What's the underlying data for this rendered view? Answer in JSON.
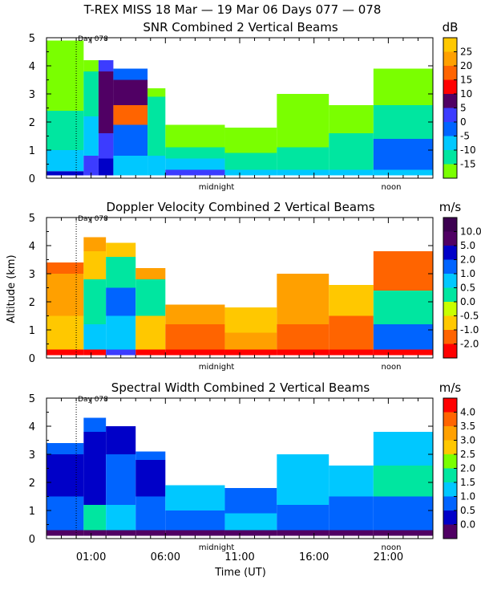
{
  "title": "T-REX MISS   18 Mar — 19 Mar 06 Days 077 — 078",
  "xlabel": "Time (UT)",
  "ylabel": "Altitude (km)",
  "x_tick_labels": [
    "01:00",
    "06:00",
    "11:00",
    "16:00",
    "21:00"
  ],
  "x_tick_hours": [
    1,
    6,
    11,
    16,
    21
  ],
  "midnight_label": "midnight",
  "noon_label": "noon",
  "day_marker_label": "Day 078",
  "y_tick_labels": [
    "0",
    "1",
    "2",
    "3",
    "4",
    "5"
  ],
  "chart_data": [
    {
      "type": "heatmap",
      "title": "SNR Combined 2 Vertical Beams",
      "unit": "dB",
      "ylim": [
        0,
        5
      ],
      "x_range_hours": [
        -2.0,
        24.0
      ],
      "colorbar_labels": [
        "25",
        "20",
        "15",
        "10",
        "5",
        "0",
        "-5",
        "-10",
        "-15"
      ],
      "colorbar_colors": [
        "#ffc800",
        "#ffa000",
        "#ff6400",
        "#ff0000",
        "#500064",
        "#3c3cff",
        "#0064ff",
        "#00c8ff",
        "#00e6a0",
        "#7aff00"
      ],
      "bands": [
        {
          "t0": -2.0,
          "t1": 0.5,
          "layers": [
            [
              0.1,
              0.25,
              "#0000c8"
            ],
            [
              0.25,
              1.0,
              "#00c8ff"
            ],
            [
              1.0,
              2.4,
              "#00e6a0"
            ],
            [
              2.4,
              4.9,
              "#7aff00"
            ]
          ]
        },
        {
          "t0": 0.5,
          "t1": 1.5,
          "layers": [
            [
              0.1,
              0.8,
              "#3c3cff"
            ],
            [
              0.8,
              2.2,
              "#00c8ff"
            ],
            [
              2.2,
              3.8,
              "#00e6a0"
            ],
            [
              3.8,
              4.2,
              "#7aff00"
            ]
          ]
        },
        {
          "t0": 1.5,
          "t1": 2.5,
          "layers": [
            [
              0.1,
              0.7,
              "#0000c8"
            ],
            [
              0.7,
              1.6,
              "#3c3cff"
            ],
            [
              1.6,
              3.8,
              "#500064"
            ],
            [
              3.8,
              4.2,
              "#3c3cff"
            ]
          ]
        },
        {
          "t0": 2.5,
          "t1": 4.8,
          "layers": [
            [
              0.1,
              0.8,
              "#00c8ff"
            ],
            [
              0.8,
              1.9,
              "#0064ff"
            ],
            [
              1.9,
              2.6,
              "#ff6400"
            ],
            [
              2.6,
              3.5,
              "#500064"
            ],
            [
              3.5,
              3.9,
              "#0064ff"
            ]
          ]
        },
        {
          "t0": 4.8,
          "t1": 6.0,
          "layers": [
            [
              0.1,
              0.8,
              "#00c8ff"
            ],
            [
              0.8,
              2.9,
              "#00e6a0"
            ],
            [
              2.9,
              3.2,
              "#7aff00"
            ]
          ]
        },
        {
          "t0": 6.0,
          "t1": 10.0,
          "layers": [
            [
              0.1,
              0.3,
              "#3c3cff"
            ],
            [
              0.3,
              0.7,
              "#00c8ff"
            ],
            [
              0.7,
              1.1,
              "#00e6a0"
            ],
            [
              1.1,
              1.9,
              "#7aff00"
            ]
          ]
        },
        {
          "t0": 10.0,
          "t1": 13.5,
          "layers": [
            [
              0.1,
              0.3,
              "#00c8ff"
            ],
            [
              0.3,
              0.9,
              "#00e6a0"
            ],
            [
              0.9,
              1.8,
              "#7aff00"
            ]
          ]
        },
        {
          "t0": 13.5,
          "t1": 17.0,
          "layers": [
            [
              0.1,
              0.3,
              "#00c8ff"
            ],
            [
              0.3,
              1.1,
              "#00e6a0"
            ],
            [
              1.1,
              3.0,
              "#7aff00"
            ]
          ]
        },
        {
          "t0": 17.0,
          "t1": 20.0,
          "layers": [
            [
              0.1,
              0.3,
              "#00c8ff"
            ],
            [
              0.3,
              1.6,
              "#00e6a0"
            ],
            [
              1.6,
              2.6,
              "#7aff00"
            ]
          ]
        },
        {
          "t0": 20.0,
          "t1": 24.0,
          "layers": [
            [
              0.1,
              0.3,
              "#00c8ff"
            ],
            [
              0.3,
              1.4,
              "#0064ff"
            ],
            [
              1.4,
              2.6,
              "#00e6a0"
            ],
            [
              2.6,
              3.9,
              "#7aff00"
            ]
          ]
        }
      ]
    },
    {
      "type": "heatmap",
      "title": "Doppler Velocity Combined 2 Vertical Beams",
      "unit": "m/s",
      "ylim": [
        0,
        5
      ],
      "x_range_hours": [
        -2.0,
        24.0
      ],
      "colorbar_labels": [
        "10.0",
        "5.0",
        "2.0",
        "1.0",
        "0.5",
        "0.0",
        "-0.5",
        "-1.0",
        "-2.0"
      ],
      "colorbar_colors": [
        "#3c0050",
        "#500064",
        "#0000c8",
        "#0064ff",
        "#00c8ff",
        "#00e6a0",
        "#c8ff00",
        "#ffc800",
        "#ff6400",
        "#ff0000"
      ],
      "bands": [
        {
          "t0": -2.0,
          "t1": 0.5,
          "layers": [
            [
              0.1,
              0.3,
              "#ff0000"
            ],
            [
              0.3,
              1.5,
              "#ffc800"
            ],
            [
              1.5,
              3.0,
              "#ffa000"
            ],
            [
              3.0,
              3.4,
              "#ff6400"
            ]
          ]
        },
        {
          "t0": 0.5,
          "t1": 2.0,
          "layers": [
            [
              0.1,
              0.3,
              "#ff0000"
            ],
            [
              0.3,
              1.2,
              "#00c8ff"
            ],
            [
              1.2,
              2.8,
              "#00e6a0"
            ],
            [
              2.8,
              3.8,
              "#ffc800"
            ],
            [
              3.8,
              4.3,
              "#ffa000"
            ]
          ]
        },
        {
          "t0": 2.0,
          "t1": 4.0,
          "layers": [
            [
              0.1,
              0.3,
              "#3c3cff"
            ],
            [
              0.3,
              1.5,
              "#00c8ff"
            ],
            [
              1.5,
              2.5,
              "#0064ff"
            ],
            [
              2.5,
              3.6,
              "#00e6a0"
            ],
            [
              3.6,
              4.1,
              "#ffc800"
            ]
          ]
        },
        {
          "t0": 4.0,
          "t1": 6.0,
          "layers": [
            [
              0.1,
              0.3,
              "#ff0000"
            ],
            [
              0.3,
              1.5,
              "#ffc800"
            ],
            [
              1.5,
              2.8,
              "#00e6a0"
            ],
            [
              2.8,
              3.2,
              "#ffa000"
            ]
          ]
        },
        {
          "t0": 6.0,
          "t1": 10.0,
          "layers": [
            [
              0.1,
              0.3,
              "#ff0000"
            ],
            [
              0.3,
              1.2,
              "#ff6400"
            ],
            [
              1.2,
              1.9,
              "#ffa000"
            ]
          ]
        },
        {
          "t0": 10.0,
          "t1": 13.5,
          "layers": [
            [
              0.1,
              0.3,
              "#ff0000"
            ],
            [
              0.3,
              0.9,
              "#ffa000"
            ],
            [
              0.9,
              1.8,
              "#ffc800"
            ]
          ]
        },
        {
          "t0": 13.5,
          "t1": 17.0,
          "layers": [
            [
              0.1,
              0.3,
              "#ff0000"
            ],
            [
              0.3,
              1.2,
              "#ff6400"
            ],
            [
              1.2,
              3.0,
              "#ffa000"
            ]
          ]
        },
        {
          "t0": 17.0,
          "t1": 20.0,
          "layers": [
            [
              0.1,
              0.3,
              "#ff0000"
            ],
            [
              0.3,
              1.5,
              "#ff6400"
            ],
            [
              1.5,
              2.6,
              "#ffc800"
            ]
          ]
        },
        {
          "t0": 20.0,
          "t1": 24.0,
          "layers": [
            [
              0.1,
              0.3,
              "#ff0000"
            ],
            [
              0.3,
              1.2,
              "#0064ff"
            ],
            [
              1.2,
              2.4,
              "#00e6a0"
            ],
            [
              2.4,
              3.8,
              "#ff6400"
            ]
          ]
        }
      ]
    },
    {
      "type": "heatmap",
      "title": "Spectral Width Combined 2 Vertical Beams",
      "unit": "m/s",
      "ylim": [
        0,
        5
      ],
      "x_range_hours": [
        -2.0,
        24.0
      ],
      "colorbar_labels": [
        "4.0",
        "3.5",
        "3.0",
        "2.5",
        "2.0",
        "1.5",
        "1.0",
        "0.5",
        "0.0"
      ],
      "colorbar_colors": [
        "#ff0000",
        "#ff6400",
        "#ffa000",
        "#ffc800",
        "#7aff00",
        "#00e6a0",
        "#00c8ff",
        "#0064ff",
        "#0000c8",
        "#500064"
      ],
      "bands": [
        {
          "t0": -2.0,
          "t1": 0.5,
          "layers": [
            [
              0.1,
              0.3,
              "#500064"
            ],
            [
              0.3,
              1.5,
              "#0064ff"
            ],
            [
              1.5,
              3.0,
              "#0000c8"
            ],
            [
              3.0,
              3.4,
              "#0064ff"
            ]
          ]
        },
        {
          "t0": 0.5,
          "t1": 2.0,
          "layers": [
            [
              0.1,
              0.3,
              "#500064"
            ],
            [
              0.3,
              1.2,
              "#00e6a0"
            ],
            [
              1.2,
              3.8,
              "#0000c8"
            ],
            [
              3.8,
              4.3,
              "#0064ff"
            ]
          ]
        },
        {
          "t0": 2.0,
          "t1": 4.0,
          "layers": [
            [
              0.1,
              0.3,
              "#500064"
            ],
            [
              0.3,
              1.2,
              "#00c8ff"
            ],
            [
              1.2,
              3.0,
              "#0064ff"
            ],
            [
              3.0,
              4.0,
              "#0000c8"
            ]
          ]
        },
        {
          "t0": 4.0,
          "t1": 6.0,
          "layers": [
            [
              0.1,
              0.3,
              "#500064"
            ],
            [
              0.3,
              1.5,
              "#0064ff"
            ],
            [
              1.5,
              2.8,
              "#0000c8"
            ],
            [
              2.8,
              3.1,
              "#0064ff"
            ]
          ]
        },
        {
          "t0": 6.0,
          "t1": 10.0,
          "layers": [
            [
              0.1,
              0.3,
              "#500064"
            ],
            [
              0.3,
              1.0,
              "#0064ff"
            ],
            [
              1.0,
              1.9,
              "#00c8ff"
            ]
          ]
        },
        {
          "t0": 10.0,
          "t1": 13.5,
          "layers": [
            [
              0.1,
              0.3,
              "#500064"
            ],
            [
              0.3,
              0.9,
              "#00c8ff"
            ],
            [
              0.9,
              1.8,
              "#0064ff"
            ]
          ]
        },
        {
          "t0": 13.5,
          "t1": 17.0,
          "layers": [
            [
              0.1,
              0.3,
              "#500064"
            ],
            [
              0.3,
              1.2,
              "#0064ff"
            ],
            [
              1.2,
              3.0,
              "#00c8ff"
            ]
          ]
        },
        {
          "t0": 17.0,
          "t1": 20.0,
          "layers": [
            [
              0.1,
              0.3,
              "#500064"
            ],
            [
              0.3,
              1.5,
              "#0064ff"
            ],
            [
              1.5,
              2.6,
              "#00c8ff"
            ]
          ]
        },
        {
          "t0": 20.0,
          "t1": 24.0,
          "layers": [
            [
              0.1,
              0.3,
              "#500064"
            ],
            [
              0.3,
              1.5,
              "#0064ff"
            ],
            [
              1.5,
              2.6,
              "#00e6a0"
            ],
            [
              2.6,
              3.8,
              "#00c8ff"
            ]
          ]
        }
      ]
    }
  ]
}
